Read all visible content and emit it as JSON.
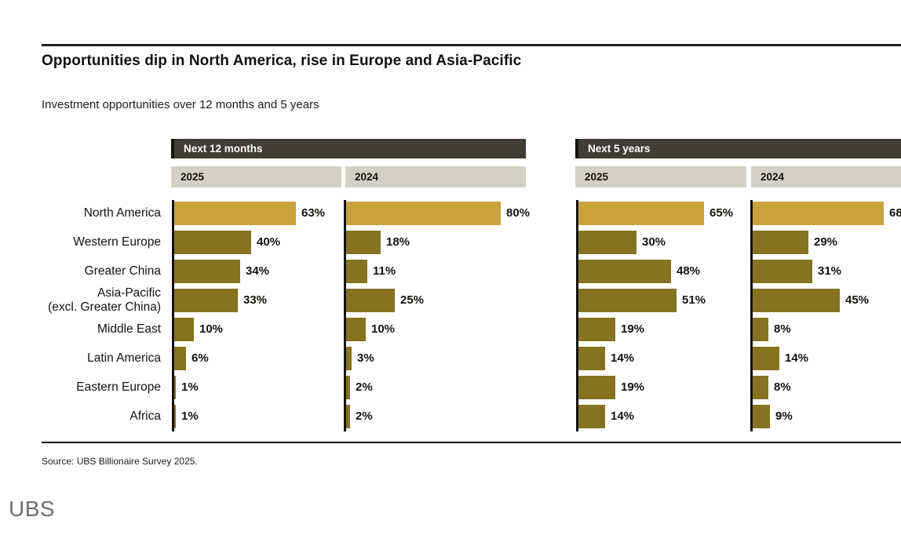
{
  "header": {
    "title": "Opportunities dip in North America, rise in Europe and Asia-Pacific",
    "subtitle": "Investment opportunities over 12 months and 5 years"
  },
  "chart_data": {
    "type": "bar",
    "orientation": "horizontal",
    "unit": "%",
    "categories": [
      "North America",
      "Western Europe",
      "Greater China",
      "Asia-Pacific\n(excl. Greater China)",
      "Middle East",
      "Latin America",
      "Eastern Europe",
      "Africa"
    ],
    "groups": [
      {
        "label": "Next 12 months",
        "series": [
          {
            "name": "2025",
            "values": [
              63,
              40,
              34,
              33,
              10,
              6,
              1,
              1
            ]
          },
          {
            "name": "2024",
            "values": [
              80,
              18,
              11,
              25,
              10,
              3,
              2,
              2
            ]
          }
        ]
      },
      {
        "label": "Next 5 years",
        "series": [
          {
            "name": "2025",
            "values": [
              65,
              30,
              48,
              51,
              19,
              14,
              19,
              14
            ]
          },
          {
            "name": "2024",
            "values": [
              68,
              29,
              31,
              45,
              8,
              14,
              8,
              9
            ]
          }
        ]
      }
    ],
    "value_suffix": "%",
    "colors": {
      "highlight_bar": "#c8a23c",
      "bar": "#857322",
      "group_header_bg": "#403d36",
      "year_header_bg": "#d3d1c7",
      "axis": "#14130f"
    },
    "highlight_category": "North America",
    "legend_position": "none",
    "grid": false
  },
  "footer": {
    "source": "Source: UBS Billionaire Survey 2025.",
    "logo": "UBS"
  }
}
